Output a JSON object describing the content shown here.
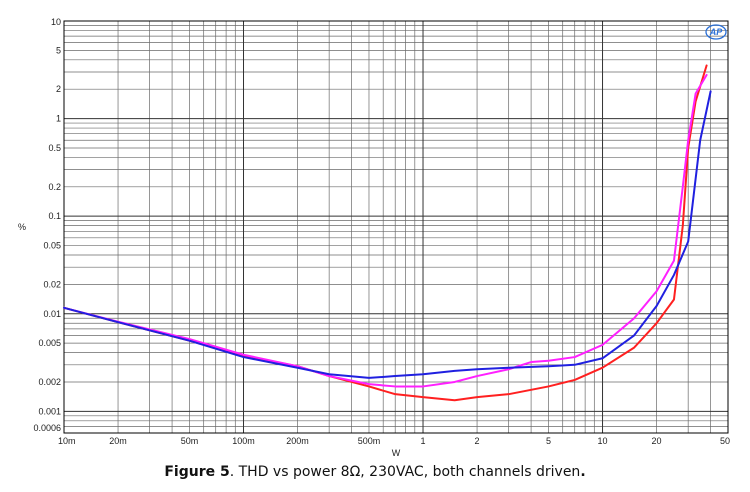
{
  "caption": {
    "label": "Figure 5",
    "text": ". THD vs power 8Ω, 230VAC, both channels driven",
    "end": "."
  },
  "logo": {
    "text": "AP",
    "color": "#2a6fd6"
  },
  "chart_data": {
    "type": "line",
    "title": "",
    "xlabel": "W",
    "ylabel": "%",
    "x_scale": "log",
    "y_scale": "log",
    "xlim": [
      0.01,
      50
    ],
    "ylim": [
      0.0006,
      10
    ],
    "grid": true,
    "legend": "none",
    "x_tick_labels": [
      {
        "value": 0.01,
        "label": "10m"
      },
      {
        "value": 0.02,
        "label": "20m"
      },
      {
        "value": 0.05,
        "label": "50m"
      },
      {
        "value": 0.1,
        "label": "100m"
      },
      {
        "value": 0.2,
        "label": "200m"
      },
      {
        "value": 0.5,
        "label": "500m"
      },
      {
        "value": 1,
        "label": "1"
      },
      {
        "value": 2,
        "label": "2"
      },
      {
        "value": 5,
        "label": "5"
      },
      {
        "value": 10,
        "label": "10"
      },
      {
        "value": 20,
        "label": "20"
      },
      {
        "value": 50,
        "label": "50"
      }
    ],
    "y_tick_labels": [
      {
        "value": 10,
        "label": "10"
      },
      {
        "value": 5,
        "label": "5"
      },
      {
        "value": 2,
        "label": "2"
      },
      {
        "value": 1,
        "label": "1"
      },
      {
        "value": 0.5,
        "label": "0.5"
      },
      {
        "value": 0.2,
        "label": "0.2"
      },
      {
        "value": 0.1,
        "label": "0.1"
      },
      {
        "value": 0.05,
        "label": "0.05"
      },
      {
        "value": 0.02,
        "label": "0.02"
      },
      {
        "value": 0.01,
        "label": "0.01"
      },
      {
        "value": 0.005,
        "label": "0.005"
      },
      {
        "value": 0.002,
        "label": "0.002"
      },
      {
        "value": 0.001,
        "label": "0.001"
      },
      {
        "value": 0.0006,
        "label": "0.0006"
      }
    ],
    "series": [
      {
        "color": "#ff2020",
        "points": [
          [
            0.01,
            0.0115
          ],
          [
            0.02,
            0.0082
          ],
          [
            0.05,
            0.0053
          ],
          [
            0.1,
            0.0037
          ],
          [
            0.2,
            0.0029
          ],
          [
            0.3,
            0.0023
          ],
          [
            0.5,
            0.0018
          ],
          [
            0.7,
            0.0015
          ],
          [
            1.0,
            0.0014
          ],
          [
            1.5,
            0.0013
          ],
          [
            2.0,
            0.0014
          ],
          [
            3.0,
            0.0015
          ],
          [
            5.0,
            0.0018
          ],
          [
            7.0,
            0.0021
          ],
          [
            10.0,
            0.0028
          ],
          [
            15.0,
            0.0045
          ],
          [
            20.0,
            0.008
          ],
          [
            25.0,
            0.014
          ],
          [
            28.0,
            0.08
          ],
          [
            30.0,
            0.5
          ],
          [
            33.0,
            1.5
          ],
          [
            38.0,
            3.5
          ]
        ]
      },
      {
        "color": "#ff20ff",
        "points": [
          [
            0.01,
            0.0115
          ],
          [
            0.02,
            0.0083
          ],
          [
            0.05,
            0.0055
          ],
          [
            0.1,
            0.0038
          ],
          [
            0.2,
            0.0029
          ],
          [
            0.3,
            0.0023
          ],
          [
            0.5,
            0.0019
          ],
          [
            0.7,
            0.0018
          ],
          [
            1.0,
            0.0018
          ],
          [
            1.5,
            0.002
          ],
          [
            2.0,
            0.0023
          ],
          [
            3.0,
            0.0027
          ],
          [
            4.0,
            0.0032
          ],
          [
            5.0,
            0.0033
          ],
          [
            7.0,
            0.0036
          ],
          [
            10.0,
            0.0048
          ],
          [
            15.0,
            0.009
          ],
          [
            20.0,
            0.017
          ],
          [
            25.0,
            0.035
          ],
          [
            28.0,
            0.2
          ],
          [
            30.0,
            0.6
          ],
          [
            33.0,
            1.8
          ],
          [
            38.0,
            2.8
          ]
        ]
      },
      {
        "color": "#2020e0",
        "points": [
          [
            0.01,
            0.0115
          ],
          [
            0.02,
            0.0082
          ],
          [
            0.05,
            0.0053
          ],
          [
            0.1,
            0.0036
          ],
          [
            0.2,
            0.0028
          ],
          [
            0.3,
            0.0024
          ],
          [
            0.5,
            0.0022
          ],
          [
            0.7,
            0.0023
          ],
          [
            1.0,
            0.0024
          ],
          [
            1.5,
            0.0026
          ],
          [
            2.0,
            0.0027
          ],
          [
            3.0,
            0.0028
          ],
          [
            5.0,
            0.0029
          ],
          [
            7.0,
            0.003
          ],
          [
            10.0,
            0.0035
          ],
          [
            15.0,
            0.006
          ],
          [
            20.0,
            0.012
          ],
          [
            25.0,
            0.025
          ],
          [
            30.0,
            0.055
          ],
          [
            35.0,
            0.6
          ],
          [
            40.0,
            1.9
          ]
        ]
      }
    ]
  }
}
